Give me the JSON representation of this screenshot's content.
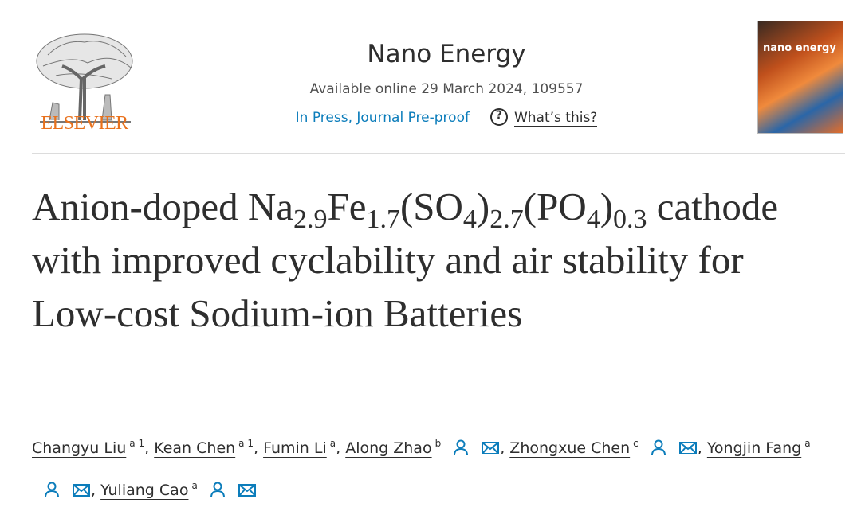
{
  "header": {
    "publisher": "ELSEVIER",
    "journal": "Nano Energy",
    "availability": "Available online 29 March 2024, 109557",
    "status": "In Press, Journal Pre-proof",
    "help_link": "What’s this?",
    "cover_title": "nano energy"
  },
  "article": {
    "title_parts": [
      {
        "text": "Anion-doped Na",
        "sub": false
      },
      {
        "text": "2.9",
        "sub": true
      },
      {
        "text": "Fe",
        "sub": false
      },
      {
        "text": "1.7",
        "sub": true
      },
      {
        "text": "(SO",
        "sub": false
      },
      {
        "text": "4",
        "sub": true
      },
      {
        "text": ")",
        "sub": false
      },
      {
        "text": "2.7",
        "sub": true
      },
      {
        "text": "(PO",
        "sub": false
      },
      {
        "text": "4",
        "sub": true
      },
      {
        "text": ")",
        "sub": false
      },
      {
        "text": "0.3",
        "sub": true
      },
      {
        "text": " cathode with improved cyclability and air stability for Low-cost Sodium-ion Batteries",
        "sub": false
      }
    ],
    "separator": ",",
    "authors": [
      {
        "name": "Changyu Liu",
        "aff": "a 1",
        "contact": false
      },
      {
        "name": "Kean Chen",
        "aff": "a 1",
        "contact": false
      },
      {
        "name": "Fumin Li",
        "aff": "a",
        "contact": false
      },
      {
        "name": "Along Zhao",
        "aff": "b",
        "contact": true
      },
      {
        "name": "Zhongxue Chen",
        "aff": "c",
        "contact": true
      },
      {
        "name": "Yongjin Fang",
        "aff": "a",
        "contact": true
      },
      {
        "name": "Yuliang Cao",
        "aff": "a",
        "contact": true
      }
    ]
  }
}
